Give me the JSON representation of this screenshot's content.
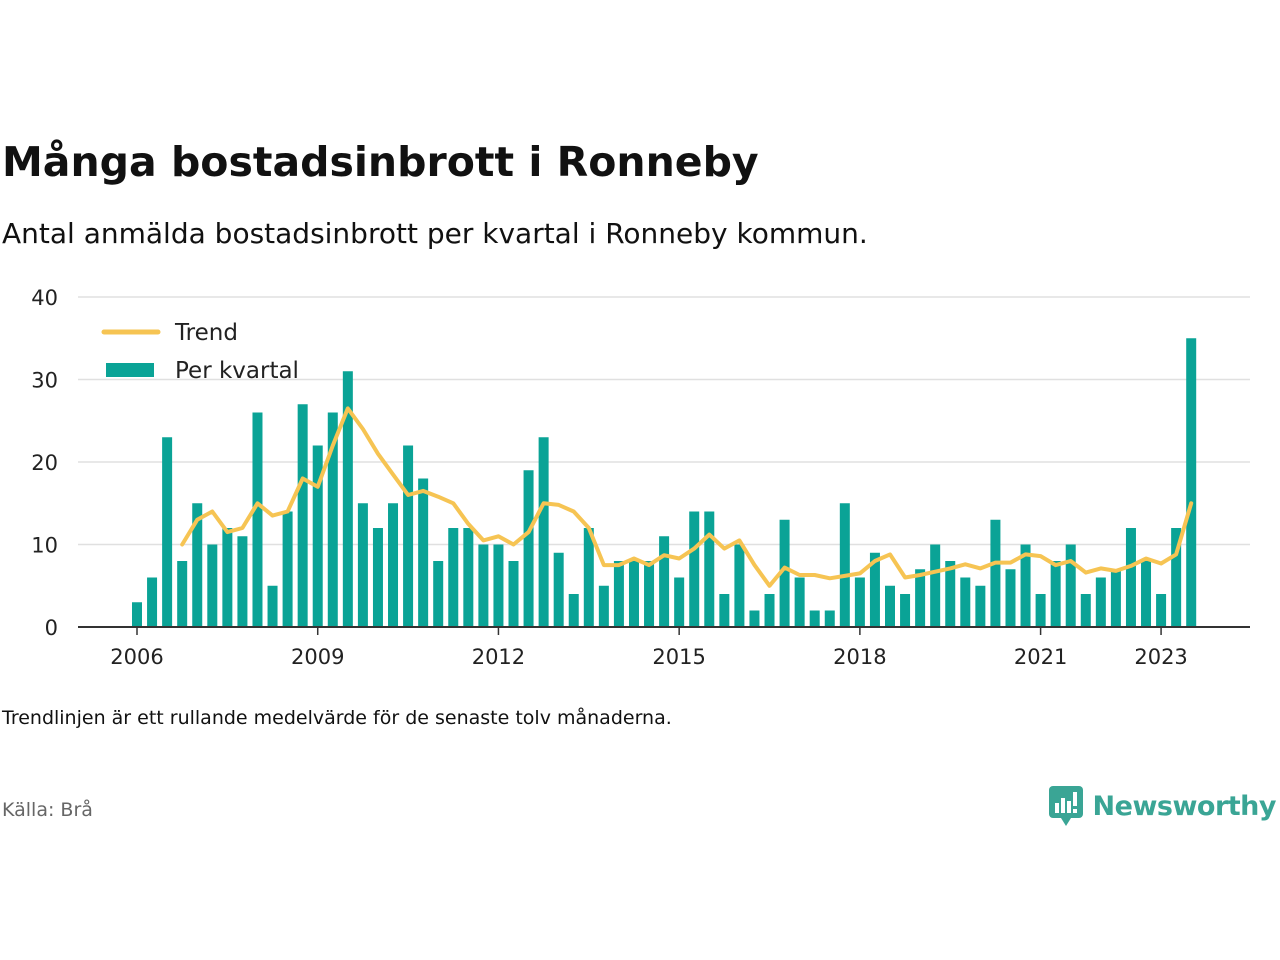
{
  "header": {
    "title": "Många bostadsinbrott i Ronneby",
    "subtitle": "Antal anmälda bostadsinbrott per kvartal i Ronneby kommun."
  },
  "footer": {
    "note": "Trendlinjen är ett rullande medelvärde för de senaste tolv månaderna.",
    "source": "Källa: Brå"
  },
  "brand": {
    "name": "Newsworthy",
    "icon": "newsworthy-logo-icon",
    "color": "#3aa595"
  },
  "colors": {
    "bars": "#0aa396",
    "trend": "#f6c453",
    "grid": "#e0e0e0",
    "axis": "#333333"
  },
  "chart_data": {
    "type": "bar",
    "title": "Många bostadsinbrott i Ronneby",
    "subtitle": "Antal anmälda bostadsinbrott per kvartal i Ronneby kommun.",
    "xlabel": "",
    "ylabel": "",
    "ylim": [
      0,
      40
    ],
    "yticks": [
      0,
      10,
      20,
      30,
      40
    ],
    "xticks": [
      "2006",
      "2009",
      "2012",
      "2015",
      "2018",
      "2021",
      "2023"
    ],
    "grid": true,
    "legend_position": "top-left",
    "categories": [
      "2006 Q1",
      "2006 Q2",
      "2006 Q3",
      "2006 Q4",
      "2007 Q1",
      "2007 Q2",
      "2007 Q3",
      "2007 Q4",
      "2008 Q1",
      "2008 Q2",
      "2008 Q3",
      "2008 Q4",
      "2009 Q1",
      "2009 Q2",
      "2009 Q3",
      "2009 Q4",
      "2010 Q1",
      "2010 Q2",
      "2010 Q3",
      "2010 Q4",
      "2011 Q1",
      "2011 Q2",
      "2011 Q3",
      "2011 Q4",
      "2012 Q1",
      "2012 Q2",
      "2012 Q3",
      "2012 Q4",
      "2013 Q1",
      "2013 Q2",
      "2013 Q3",
      "2013 Q4",
      "2014 Q1",
      "2014 Q2",
      "2014 Q3",
      "2014 Q4",
      "2015 Q1",
      "2015 Q2",
      "2015 Q3",
      "2015 Q4",
      "2016 Q1",
      "2016 Q2",
      "2016 Q3",
      "2016 Q4",
      "2017 Q1",
      "2017 Q2",
      "2017 Q3",
      "2017 Q4",
      "2018 Q1",
      "2018 Q2",
      "2018 Q3",
      "2018 Q4",
      "2019 Q1",
      "2019 Q2",
      "2019 Q3",
      "2019 Q4",
      "2020 Q1",
      "2020 Q2",
      "2020 Q3",
      "2020 Q4",
      "2021 Q1",
      "2021 Q2",
      "2021 Q3",
      "2021 Q4",
      "2022 Q1",
      "2022 Q2",
      "2022 Q3",
      "2022 Q4",
      "2023 Q1",
      "2023 Q2",
      "2023 Q3"
    ],
    "series": [
      {
        "name": "Per kvartal",
        "type": "bar",
        "values": [
          3,
          6,
          23,
          8,
          15,
          10,
          12,
          11,
          26,
          5,
          14,
          27,
          22,
          26,
          31,
          15,
          12,
          15,
          22,
          18,
          8,
          12,
          12,
          10,
          10,
          8,
          19,
          23,
          9,
          4,
          12,
          5,
          8,
          8,
          8,
          11,
          6,
          14,
          14,
          4,
          10,
          2,
          4,
          13,
          6,
          2,
          2,
          15,
          6,
          9,
          5,
          4,
          7,
          10,
          8,
          6,
          5,
          13,
          7,
          10,
          4,
          8,
          10,
          4,
          6,
          7,
          12,
          8,
          4,
          12,
          35
        ]
      },
      {
        "name": "Trend",
        "type": "line",
        "values": [
          null,
          null,
          null,
          10,
          13,
          14,
          11.5,
          12,
          15,
          13.5,
          14,
          18,
          17,
          22,
          26.5,
          24,
          21,
          18.5,
          16,
          16.5,
          15.8,
          15,
          12.5,
          10.5,
          11,
          10,
          11.5,
          15,
          14.8,
          14,
          12,
          7.5,
          7.5,
          8.3,
          7.5,
          8.7,
          8.3,
          9.5,
          11.2,
          9.5,
          10.5,
          7.5,
          5,
          7.2,
          6.3,
          6.3,
          5.9,
          6.2,
          6.5,
          8,
          8.8,
          6,
          6.3,
          6.7,
          7.1,
          7.6,
          7.1,
          7.8,
          7.8,
          8.8,
          8.6,
          7.5,
          8,
          6.6,
          7.1,
          6.8,
          7.4,
          8.3,
          7.7,
          8.8,
          15
        ]
      }
    ]
  }
}
